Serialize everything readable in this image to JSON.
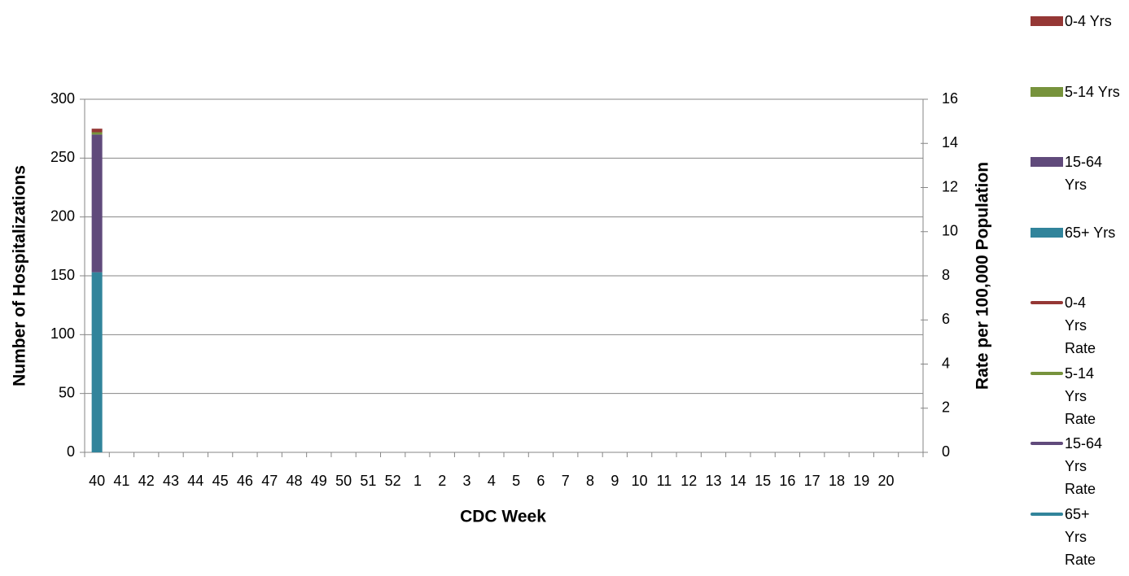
{
  "chart_data": {
    "type": "bar",
    "x_label": "CDC Week",
    "y_label": "Number of Hospitalizations",
    "y2_label": "Rate per 100,000 Population",
    "categories": [
      "40",
      "41",
      "42",
      "43",
      "44",
      "45",
      "46",
      "47",
      "48",
      "49",
      "50",
      "51",
      "52",
      "1",
      "2",
      "3",
      "4",
      "5",
      "6",
      "7",
      "8",
      "9",
      "10",
      "11",
      "12",
      "13",
      "14",
      "15",
      "16",
      "17",
      "18",
      "19",
      "20",
      null
    ],
    "ylim": [
      0,
      300
    ],
    "yticks": [
      0,
      50,
      100,
      150,
      200,
      250,
      300
    ],
    "y2lim": [
      0,
      16
    ],
    "y2ticks": [
      0,
      2,
      4,
      6,
      8,
      10,
      12,
      14,
      16
    ],
    "grid": true,
    "legend": "right",
    "stacked": true,
    "series": [
      {
        "name": "0-4 Yrs",
        "type": "bar",
        "color": "#953735",
        "values": [
          3,
          null,
          null,
          null,
          null,
          null,
          null,
          null,
          null,
          null,
          null,
          null,
          null,
          null,
          null,
          null,
          null,
          null,
          null,
          null,
          null,
          null,
          null,
          null,
          null,
          null,
          null,
          null,
          null,
          null,
          null,
          null,
          null,
          null
        ]
      },
      {
        "name": "5-14 Yrs",
        "type": "bar",
        "color": "#77933c",
        "values": [
          2,
          null,
          null,
          null,
          null,
          null,
          null,
          null,
          null,
          null,
          null,
          null,
          null,
          null,
          null,
          null,
          null,
          null,
          null,
          null,
          null,
          null,
          null,
          null,
          null,
          null,
          null,
          null,
          null,
          null,
          null,
          null,
          null,
          null
        ]
      },
      {
        "name": "15-64 Yrs",
        "type": "bar",
        "color": "#604a7b",
        "values": [
          117,
          null,
          null,
          null,
          null,
          null,
          null,
          null,
          null,
          null,
          null,
          null,
          null,
          null,
          null,
          null,
          null,
          null,
          null,
          null,
          null,
          null,
          null,
          null,
          null,
          null,
          null,
          null,
          null,
          null,
          null,
          null,
          null,
          null
        ]
      },
      {
        "name": "65+ Yrs",
        "type": "bar",
        "color": "#31849b",
        "values": [
          153,
          null,
          null,
          null,
          null,
          null,
          null,
          null,
          null,
          null,
          null,
          null,
          null,
          null,
          null,
          null,
          null,
          null,
          null,
          null,
          null,
          null,
          null,
          null,
          null,
          null,
          null,
          null,
          null,
          null,
          null,
          null,
          null,
          null
        ]
      },
      {
        "name": "0-4 Yrs Rate",
        "type": "line",
        "axis": "y2",
        "color": "#953735",
        "values": [
          null,
          null,
          null,
          null,
          null,
          null,
          null,
          null,
          null,
          null,
          null,
          null,
          null,
          null,
          null,
          null,
          null,
          null,
          null,
          null,
          null,
          null,
          null,
          null,
          null,
          null,
          null,
          null,
          null,
          null,
          null,
          null,
          null,
          null
        ]
      },
      {
        "name": "5-14 Yrs Rate",
        "type": "line",
        "axis": "y2",
        "color": "#77933c",
        "values": [
          null,
          null,
          null,
          null,
          null,
          null,
          null,
          null,
          null,
          null,
          null,
          null,
          null,
          null,
          null,
          null,
          null,
          null,
          null,
          null,
          null,
          null,
          null,
          null,
          null,
          null,
          null,
          null,
          null,
          null,
          null,
          null,
          null,
          null
        ]
      },
      {
        "name": "15-64 Yrs Rate",
        "type": "line",
        "axis": "y2",
        "color": "#604a7b",
        "values": [
          null,
          null,
          null,
          null,
          null,
          null,
          null,
          null,
          null,
          null,
          null,
          null,
          null,
          null,
          null,
          null,
          null,
          null,
          null,
          null,
          null,
          null,
          null,
          null,
          null,
          null,
          null,
          null,
          null,
          null,
          null,
          null,
          null,
          null
        ]
      },
      {
        "name": "65+ Yrs Rate",
        "type": "line",
        "axis": "y2",
        "color": "#31849b",
        "values": [
          null,
          null,
          null,
          null,
          null,
          null,
          null,
          null,
          null,
          null,
          null,
          null,
          null,
          null,
          null,
          null,
          null,
          null,
          null,
          null,
          null,
          null,
          null,
          null,
          null,
          null,
          null,
          null,
          null,
          null,
          null,
          null,
          null,
          null
        ]
      }
    ]
  }
}
